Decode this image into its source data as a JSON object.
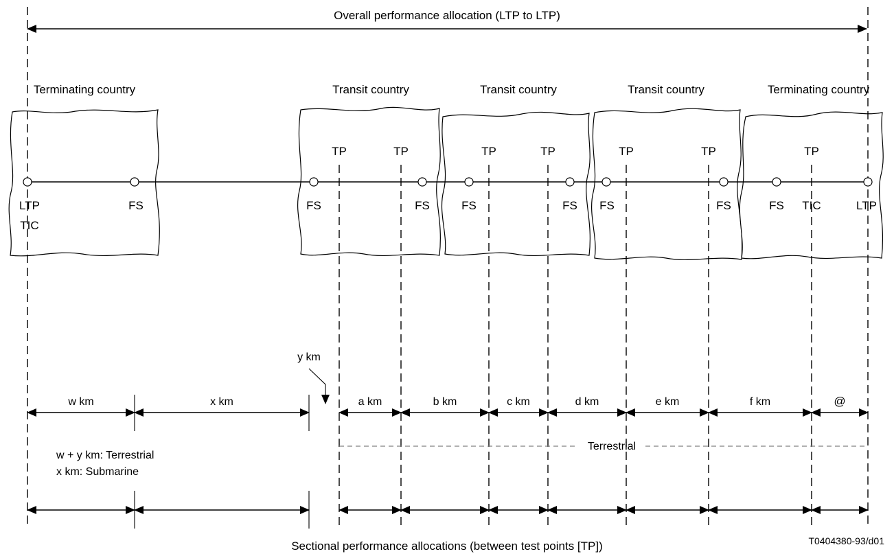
{
  "top_label": "Overall performance allocation (LTP to LTP)",
  "bottom_label": "Sectional performance allocations (between test points [TP])",
  "figure_id": "T0404380-93/d01",
  "countries": [
    "Terminating country",
    "Transit country",
    "Transit country",
    "Transit country",
    "Terminating country"
  ],
  "tp_label": "TP",
  "nodes": {
    "ltp": "LTP",
    "tic": "TIC",
    "fs": "FS"
  },
  "distances": {
    "w": "w km",
    "x": "x km",
    "y": "y km",
    "a": "a km",
    "b": "b km",
    "c": "c km",
    "d": "d km",
    "e": "e km",
    "f": "f km",
    "at": "@"
  },
  "terrestrial_label": "Terrestrial",
  "notes": {
    "line1": "w + y km: Terrestrial",
    "line2": "x km: Submarine"
  }
}
